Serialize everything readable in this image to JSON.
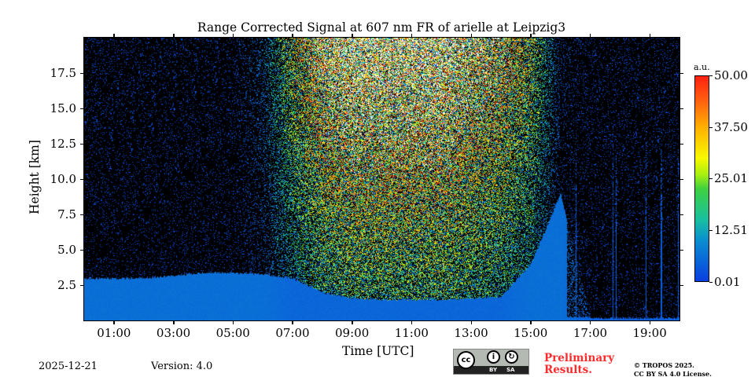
{
  "chart_data": {
    "type": "heatmap",
    "title": "Range Corrected Signal at 607 nm FR of arielle at Leipzig3",
    "xlabel": "Time [UTC]",
    "ylabel": "Height [km]",
    "xlim_hours": [
      0,
      20
    ],
    "ylim_km": [
      0,
      20
    ],
    "x_ticks": [
      {
        "value": 1,
        "label": "01:00"
      },
      {
        "value": 3,
        "label": "03:00"
      },
      {
        "value": 5,
        "label": "05:00"
      },
      {
        "value": 7,
        "label": "07:00"
      },
      {
        "value": 9,
        "label": "09:00"
      },
      {
        "value": 11,
        "label": "11:00"
      },
      {
        "value": 13,
        "label": "13:00"
      },
      {
        "value": 15,
        "label": "15:00"
      },
      {
        "value": 17,
        "label": "17:00"
      },
      {
        "value": 19,
        "label": "19:00"
      }
    ],
    "y_ticks": [
      {
        "value": 2.5,
        "label": "2.5"
      },
      {
        "value": 5,
        "label": "5.0"
      },
      {
        "value": 7.5,
        "label": "7.5"
      },
      {
        "value": 10,
        "label": "10.0"
      },
      {
        "value": 12.5,
        "label": "12.5"
      },
      {
        "value": 15,
        "label": "15.0"
      },
      {
        "value": 17.5,
        "label": "17.5"
      }
    ],
    "colorbar": {
      "unit": "a.u.",
      "range": [
        0.01,
        50.0
      ],
      "ticks": [
        {
          "value": 0.01,
          "label": "0.01"
        },
        {
          "value": 12.51,
          "label": "12.51"
        },
        {
          "value": 25.01,
          "label": "25.01"
        },
        {
          "value": 37.5,
          "label": "37.50"
        },
        {
          "value": 50.0,
          "label": "50.00"
        }
      ]
    },
    "hourly_profile": {
      "hour": [
        0,
        1,
        2,
        3,
        4,
        5,
        6,
        7,
        8,
        9,
        10,
        11,
        12,
        13,
        14,
        15,
        16,
        17,
        18,
        19
      ],
      "signal_layer_top_km": [
        3.0,
        3.0,
        3.0,
        3.2,
        3.4,
        3.4,
        3.3,
        3.0,
        2.0,
        1.6,
        1.5,
        1.5,
        1.5,
        1.6,
        1.7,
        4.0,
        9.0,
        0.2,
        0.2,
        0.2
      ],
      "signal_layer_value": [
        6,
        6,
        6,
        6,
        6,
        6,
        6,
        5,
        5,
        5,
        5,
        5,
        5,
        5,
        5,
        6,
        6,
        4,
        4,
        4
      ],
      "background_noise_level": [
        2,
        2,
        2,
        2,
        2,
        2,
        8,
        30,
        45,
        50,
        50,
        50,
        50,
        45,
        40,
        30,
        4,
        2,
        2,
        2
      ]
    }
  },
  "footer": {
    "date": "2025-12-21",
    "version": "Version: 4.0",
    "license_badge": {
      "icon": "cc-by-sa-icon",
      "by": "BY",
      "sa": "SA",
      "cc": "cc"
    },
    "preliminary": "Preliminary Results.",
    "copyright_line1": "© TROPOS 2025.",
    "copyright_line2": "CC BY SA 4.0 License."
  }
}
